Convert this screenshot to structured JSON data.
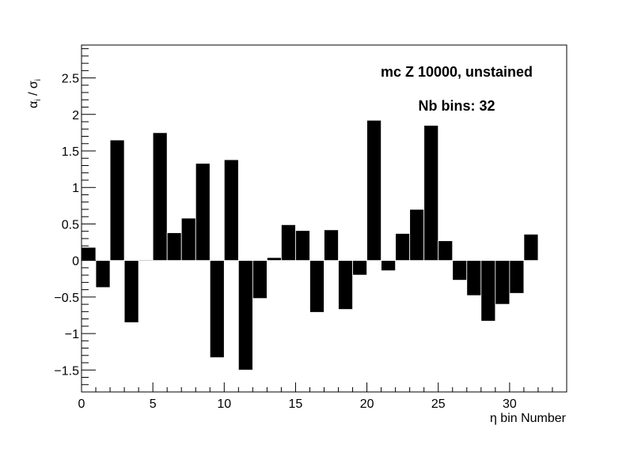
{
  "chart_data": {
    "type": "bar",
    "title": "",
    "xlabel": "η bin Number",
    "ylabel_main": "α",
    "ylabel_main_sub": "i",
    "ylabel_sep": " / ",
    "ylabel_denom": "σ",
    "ylabel_denom_sub": "i",
    "xlim": [
      0,
      34
    ],
    "ylim": [
      -1.8,
      2.95
    ],
    "x_ticks": [
      0,
      5,
      10,
      15,
      20,
      25,
      30
    ],
    "x_tick_labels": [
      "0",
      "5",
      "10",
      "15",
      "20",
      "25",
      "30"
    ],
    "y_ticks": [
      -1.5,
      -1,
      -0.5,
      0,
      0.5,
      1,
      1.5,
      2,
      2.5
    ],
    "y_tick_labels": [
      "−1.5",
      "−1",
      "−0.5",
      "0",
      "0.5",
      "1",
      "1.5",
      "2",
      "2.5"
    ],
    "bin_width": 1,
    "bin_starts": [
      0,
      1,
      2,
      3,
      4,
      5,
      6,
      7,
      8,
      9,
      10,
      11,
      12,
      13,
      14,
      15,
      16,
      17,
      18,
      19,
      20,
      21,
      22,
      23,
      24,
      25,
      26,
      27,
      28,
      29,
      30,
      31
    ],
    "values": [
      0.18,
      -0.37,
      1.65,
      -0.85,
      0.01,
      1.75,
      0.38,
      0.58,
      1.33,
      -1.33,
      1.38,
      -1.5,
      -0.52,
      0.04,
      0.49,
      0.41,
      -0.71,
      0.42,
      -0.67,
      -0.2,
      1.92,
      -0.14,
      0.37,
      0.7,
      1.85,
      0.27,
      -0.27,
      -0.48,
      -0.83,
      -0.6,
      -0.45,
      0.36
    ],
    "bar_color": "#000000",
    "annotations": [
      "mc Z 10000, unstained",
      "Nb bins: 32"
    ]
  }
}
